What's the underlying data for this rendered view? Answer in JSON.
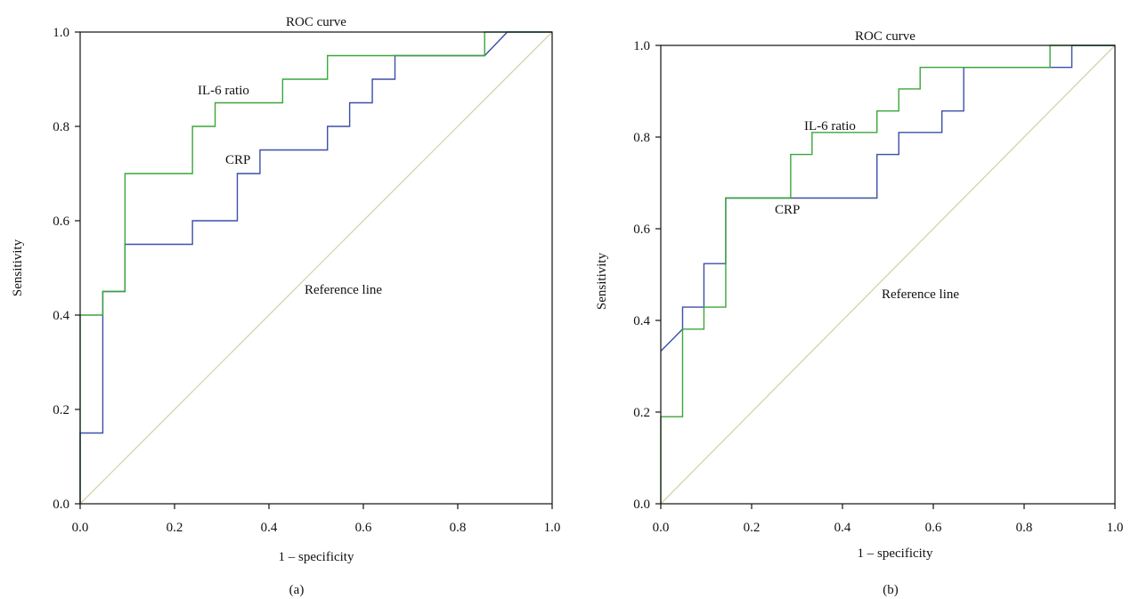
{
  "colors": {
    "il6": "#3aa63a",
    "crp": "#3b4fa8",
    "reference": "#cfd6a8",
    "axes": "#111111"
  },
  "chart_data": [
    {
      "type": "line",
      "panel_label": "(a)",
      "title": "ROC curve",
      "xlabel": "1 – specificity",
      "ylabel": "Sensitivity",
      "xlim": [
        0,
        1
      ],
      "ylim": [
        0,
        1
      ],
      "x_ticks": [
        "0.0",
        "0.2",
        "0.4",
        "0.6",
        "0.8",
        "1.0"
      ],
      "y_ticks": [
        "0.0",
        "0.2",
        "0.4",
        "0.6",
        "0.8",
        "1.0"
      ],
      "grid": false,
      "annotations": {
        "il6": "IL-6 ratio",
        "crp": "CRP",
        "reference": "Reference line"
      },
      "series": [
        {
          "key": "il6",
          "points": [
            [
              0,
              0
            ],
            [
              0,
              0.4
            ],
            [
              0.048,
              0.4
            ],
            [
              0.048,
              0.45
            ],
            [
              0.095,
              0.45
            ],
            [
              0.095,
              0.7
            ],
            [
              0.238,
              0.7
            ],
            [
              0.238,
              0.8
            ],
            [
              0.286,
              0.8
            ],
            [
              0.286,
              0.85
            ],
            [
              0.429,
              0.85
            ],
            [
              0.429,
              0.9
            ],
            [
              0.524,
              0.9
            ],
            [
              0.524,
              0.95
            ],
            [
              0.857,
              0.95
            ],
            [
              0.857,
              1.0
            ],
            [
              1.0,
              1.0
            ]
          ]
        },
        {
          "key": "crp",
          "points": [
            [
              0,
              0
            ],
            [
              0,
              0.15
            ],
            [
              0.048,
              0.15
            ],
            [
              0.048,
              0.45
            ],
            [
              0.095,
              0.45
            ],
            [
              0.095,
              0.55
            ],
            [
              0.238,
              0.55
            ],
            [
              0.238,
              0.6
            ],
            [
              0.333,
              0.6
            ],
            [
              0.333,
              0.7
            ],
            [
              0.381,
              0.7
            ],
            [
              0.381,
              0.75
            ],
            [
              0.524,
              0.75
            ],
            [
              0.524,
              0.8
            ],
            [
              0.571,
              0.8
            ],
            [
              0.571,
              0.85
            ],
            [
              0.619,
              0.85
            ],
            [
              0.619,
              0.9
            ],
            [
              0.667,
              0.9
            ],
            [
              0.667,
              0.95
            ],
            [
              0.857,
              0.95
            ],
            [
              0.905,
              1.0
            ],
            [
              1.0,
              1.0
            ]
          ]
        },
        {
          "key": "reference",
          "points": [
            [
              0,
              0
            ],
            [
              1,
              1
            ]
          ]
        }
      ]
    },
    {
      "type": "line",
      "panel_label": "(b)",
      "title": "ROC curve",
      "xlabel": "1 – specificity",
      "ylabel": "Sensitivity",
      "xlim": [
        0,
        1
      ],
      "ylim": [
        0,
        1
      ],
      "x_ticks": [
        "0.0",
        "0.2",
        "0.4",
        "0.6",
        "0.8",
        "1.0"
      ],
      "y_ticks": [
        "0.0",
        "0.2",
        "0.4",
        "0.6",
        "0.8",
        "1.0"
      ],
      "grid": false,
      "annotations": {
        "il6": "IL-6 ratio",
        "crp": "CRP",
        "reference": "Reference line"
      },
      "series": [
        {
          "key": "il6",
          "points": [
            [
              0,
              0
            ],
            [
              0,
              0.19
            ],
            [
              0.048,
              0.19
            ],
            [
              0.048,
              0.381
            ],
            [
              0.095,
              0.381
            ],
            [
              0.095,
              0.429
            ],
            [
              0.143,
              0.429
            ],
            [
              0.143,
              0.667
            ],
            [
              0.286,
              0.667
            ],
            [
              0.286,
              0.762
            ],
            [
              0.333,
              0.762
            ],
            [
              0.333,
              0.81
            ],
            [
              0.476,
              0.81
            ],
            [
              0.476,
              0.857
            ],
            [
              0.524,
              0.857
            ],
            [
              0.524,
              0.905
            ],
            [
              0.571,
              0.905
            ],
            [
              0.571,
              0.952
            ],
            [
              0.857,
              0.952
            ],
            [
              0.857,
              1.0
            ],
            [
              1.0,
              1.0
            ]
          ]
        },
        {
          "key": "crp",
          "points": [
            [
              0,
              0.333
            ],
            [
              0.048,
              0.381
            ],
            [
              0.048,
              0.429
            ],
            [
              0.095,
              0.429
            ],
            [
              0.095,
              0.524
            ],
            [
              0.143,
              0.524
            ],
            [
              0.143,
              0.667
            ],
            [
              0.476,
              0.667
            ],
            [
              0.476,
              0.762
            ],
            [
              0.524,
              0.762
            ],
            [
              0.524,
              0.81
            ],
            [
              0.619,
              0.81
            ],
            [
              0.619,
              0.857
            ],
            [
              0.667,
              0.857
            ],
            [
              0.667,
              0.952
            ],
            [
              0.905,
              0.952
            ],
            [
              0.905,
              1.0
            ],
            [
              1.0,
              1.0
            ]
          ]
        },
        {
          "key": "reference",
          "points": [
            [
              0,
              0
            ],
            [
              1,
              1
            ]
          ]
        }
      ]
    }
  ]
}
